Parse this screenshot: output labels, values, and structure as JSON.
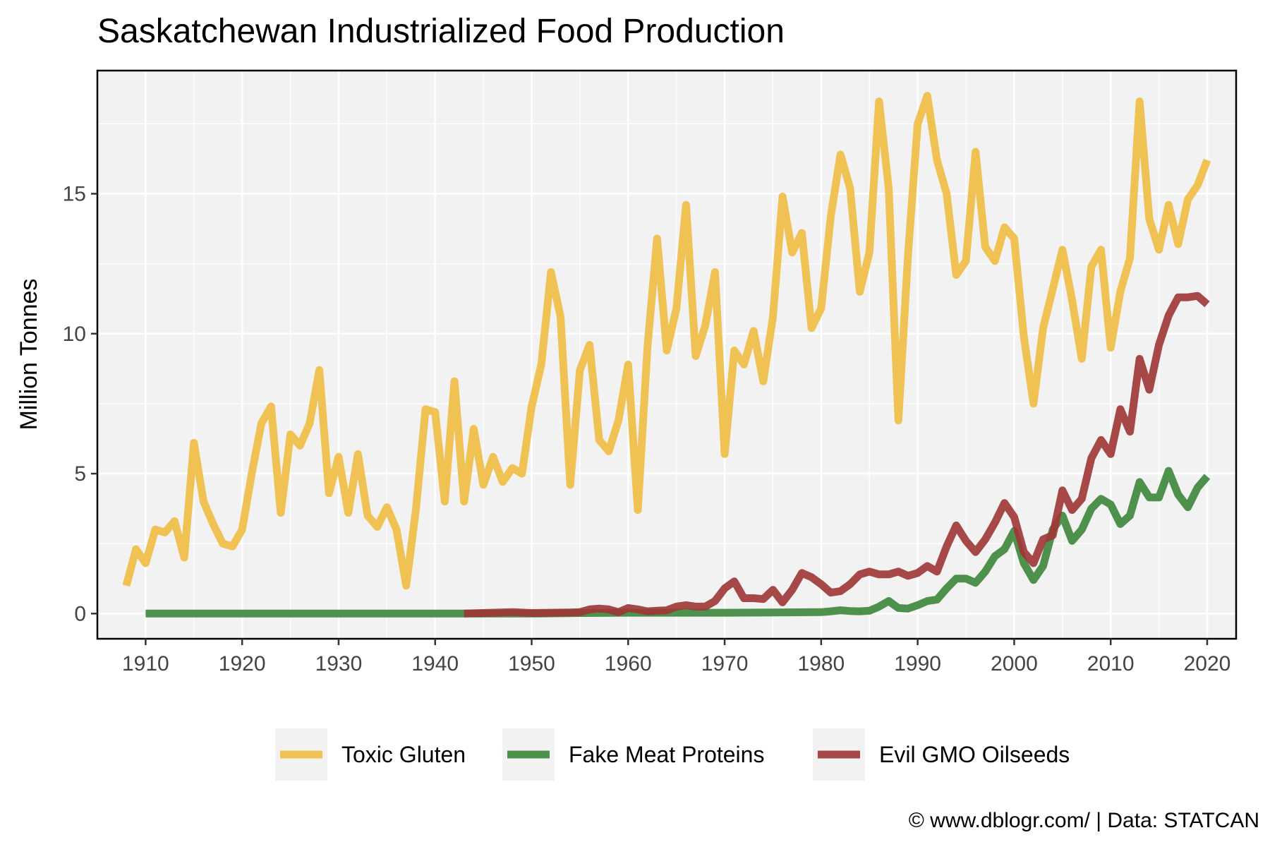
{
  "chart_data": {
    "type": "line",
    "title": "Saskatchewan Industrialized Food Production",
    "xlabel": "",
    "ylabel": "Million Tonnes",
    "xlim": [
      1905,
      2023
    ],
    "ylim": [
      -0.9,
      19.4
    ],
    "xticks": [
      1910,
      1920,
      1930,
      1940,
      1950,
      1960,
      1970,
      1980,
      1990,
      2000,
      2010,
      2020
    ],
    "yticks": [
      0,
      5,
      10,
      15
    ],
    "grid": true,
    "legend_position": "bottom",
    "caption": "© www.dblogr.com/  |  Data: STATCAN",
    "series": [
      {
        "name": "Toxic Gluten",
        "color": "#F0BC42",
        "points": [
          [
            1908,
            1.0
          ],
          [
            1909,
            2.3
          ],
          [
            1910,
            1.8
          ],
          [
            1911,
            3.0
          ],
          [
            1912,
            2.9
          ],
          [
            1913,
            3.3
          ],
          [
            1914,
            2.0
          ],
          [
            1915,
            6.1
          ],
          [
            1916,
            4.0
          ],
          [
            1917,
            3.2
          ],
          [
            1918,
            2.5
          ],
          [
            1919,
            2.4
          ],
          [
            1920,
            3.0
          ],
          [
            1921,
            5.0
          ],
          [
            1922,
            6.8
          ],
          [
            1923,
            7.4
          ],
          [
            1924,
            3.6
          ],
          [
            1925,
            6.4
          ],
          [
            1926,
            6.0
          ],
          [
            1927,
            6.8
          ],
          [
            1928,
            8.7
          ],
          [
            1929,
            4.3
          ],
          [
            1930,
            5.6
          ],
          [
            1931,
            3.6
          ],
          [
            1932,
            5.7
          ],
          [
            1933,
            3.5
          ],
          [
            1934,
            3.1
          ],
          [
            1935,
            3.8
          ],
          [
            1936,
            3.0
          ],
          [
            1937,
            1.0
          ],
          [
            1938,
            3.7
          ],
          [
            1939,
            7.3
          ],
          [
            1940,
            7.2
          ],
          [
            1941,
            4.0
          ],
          [
            1942,
            8.3
          ],
          [
            1943,
            4.0
          ],
          [
            1944,
            6.6
          ],
          [
            1945,
            4.6
          ],
          [
            1946,
            5.6
          ],
          [
            1947,
            4.7
          ],
          [
            1948,
            5.2
          ],
          [
            1949,
            5.0
          ],
          [
            1950,
            7.4
          ],
          [
            1951,
            8.9
          ],
          [
            1952,
            12.2
          ],
          [
            1953,
            10.6
          ],
          [
            1954,
            4.6
          ],
          [
            1955,
            8.7
          ],
          [
            1956,
            9.6
          ],
          [
            1957,
            6.2
          ],
          [
            1958,
            5.8
          ],
          [
            1959,
            6.9
          ],
          [
            1960,
            8.9
          ],
          [
            1961,
            3.7
          ],
          [
            1962,
            9.5
          ],
          [
            1963,
            13.4
          ],
          [
            1964,
            9.4
          ],
          [
            1965,
            10.9
          ],
          [
            1966,
            14.6
          ],
          [
            1967,
            9.2
          ],
          [
            1968,
            10.3
          ],
          [
            1969,
            12.2
          ],
          [
            1970,
            5.7
          ],
          [
            1971,
            9.4
          ],
          [
            1972,
            8.9
          ],
          [
            1973,
            10.1
          ],
          [
            1974,
            8.3
          ],
          [
            1975,
            10.6
          ],
          [
            1976,
            14.9
          ],
          [
            1977,
            12.9
          ],
          [
            1978,
            13.6
          ],
          [
            1979,
            10.2
          ],
          [
            1980,
            10.9
          ],
          [
            1981,
            14.2
          ],
          [
            1982,
            16.4
          ],
          [
            1983,
            15.2
          ],
          [
            1984,
            11.5
          ],
          [
            1985,
            12.9
          ],
          [
            1986,
            18.3
          ],
          [
            1987,
            15.2
          ],
          [
            1988,
            6.9
          ],
          [
            1989,
            12.8
          ],
          [
            1990,
            17.5
          ],
          [
            1991,
            18.5
          ],
          [
            1992,
            16.2
          ],
          [
            1993,
            15.0
          ],
          [
            1994,
            12.1
          ],
          [
            1995,
            12.6
          ],
          [
            1996,
            16.5
          ],
          [
            1997,
            13.1
          ],
          [
            1998,
            12.6
          ],
          [
            1999,
            13.8
          ],
          [
            2000,
            13.4
          ],
          [
            2001,
            9.9
          ],
          [
            2002,
            7.5
          ],
          [
            2003,
            10.2
          ],
          [
            2004,
            11.6
          ],
          [
            2005,
            13.0
          ],
          [
            2006,
            11.2
          ],
          [
            2007,
            9.1
          ],
          [
            2008,
            12.4
          ],
          [
            2009,
            13.0
          ],
          [
            2010,
            9.5
          ],
          [
            2011,
            11.5
          ],
          [
            2012,
            12.7
          ],
          [
            2013,
            18.3
          ],
          [
            2014,
            14.1
          ],
          [
            2015,
            13.0
          ],
          [
            2016,
            14.6
          ],
          [
            2017,
            13.2
          ],
          [
            2018,
            14.8
          ],
          [
            2019,
            15.3
          ],
          [
            2020,
            16.2
          ]
        ]
      },
      {
        "name": "Fake Meat Proteins",
        "color": "#3B863A",
        "points": [
          [
            1910,
            0.0
          ],
          [
            1920,
            0.0
          ],
          [
            1930,
            0.0
          ],
          [
            1940,
            0.0
          ],
          [
            1950,
            0.0
          ],
          [
            1955,
            0.02
          ],
          [
            1960,
            0.03
          ],
          [
            1965,
            0.03
          ],
          [
            1970,
            0.03
          ],
          [
            1975,
            0.04
          ],
          [
            1980,
            0.05
          ],
          [
            1981,
            0.08
          ],
          [
            1982,
            0.12
          ],
          [
            1983,
            0.09
          ],
          [
            1984,
            0.08
          ],
          [
            1985,
            0.1
          ],
          [
            1986,
            0.25
          ],
          [
            1987,
            0.45
          ],
          [
            1988,
            0.2
          ],
          [
            1989,
            0.18
          ],
          [
            1990,
            0.3
          ],
          [
            1991,
            0.45
          ],
          [
            1992,
            0.5
          ],
          [
            1993,
            0.9
          ],
          [
            1994,
            1.25
          ],
          [
            1995,
            1.25
          ],
          [
            1996,
            1.1
          ],
          [
            1997,
            1.5
          ],
          [
            1998,
            2.05
          ],
          [
            1999,
            2.3
          ],
          [
            2000,
            2.95
          ],
          [
            2001,
            1.8
          ],
          [
            2002,
            1.2
          ],
          [
            2003,
            1.7
          ],
          [
            2004,
            3.0
          ],
          [
            2005,
            3.5
          ],
          [
            2006,
            2.6
          ],
          [
            2007,
            3.0
          ],
          [
            2008,
            3.75
          ],
          [
            2009,
            4.1
          ],
          [
            2010,
            3.9
          ],
          [
            2011,
            3.2
          ],
          [
            2012,
            3.5
          ],
          [
            2013,
            4.7
          ],
          [
            2014,
            4.15
          ],
          [
            2015,
            4.15
          ],
          [
            2016,
            5.1
          ],
          [
            2017,
            4.25
          ],
          [
            2018,
            3.8
          ],
          [
            2019,
            4.5
          ],
          [
            2020,
            4.9
          ]
        ]
      },
      {
        "name": "Evil GMO Oilseeds",
        "color": "#9E3535",
        "points": [
          [
            1943,
            0.0
          ],
          [
            1945,
            0.02
          ],
          [
            1948,
            0.05
          ],
          [
            1950,
            0.02
          ],
          [
            1954,
            0.04
          ],
          [
            1955,
            0.05
          ],
          [
            1956,
            0.15
          ],
          [
            1957,
            0.18
          ],
          [
            1958,
            0.15
          ],
          [
            1959,
            0.05
          ],
          [
            1960,
            0.2
          ],
          [
            1961,
            0.15
          ],
          [
            1962,
            0.08
          ],
          [
            1963,
            0.1
          ],
          [
            1964,
            0.12
          ],
          [
            1965,
            0.25
          ],
          [
            1966,
            0.3
          ],
          [
            1967,
            0.25
          ],
          [
            1968,
            0.25
          ],
          [
            1969,
            0.45
          ],
          [
            1970,
            0.9
          ],
          [
            1971,
            1.15
          ],
          [
            1972,
            0.55
          ],
          [
            1973,
            0.55
          ],
          [
            1974,
            0.52
          ],
          [
            1975,
            0.85
          ],
          [
            1976,
            0.4
          ],
          [
            1977,
            0.85
          ],
          [
            1978,
            1.45
          ],
          [
            1979,
            1.3
          ],
          [
            1980,
            1.05
          ],
          [
            1981,
            0.75
          ],
          [
            1982,
            0.8
          ],
          [
            1983,
            1.05
          ],
          [
            1984,
            1.4
          ],
          [
            1985,
            1.5
          ],
          [
            1986,
            1.4
          ],
          [
            1987,
            1.4
          ],
          [
            1988,
            1.5
          ],
          [
            1989,
            1.35
          ],
          [
            1990,
            1.45
          ],
          [
            1991,
            1.7
          ],
          [
            1992,
            1.5
          ],
          [
            1993,
            2.4
          ],
          [
            1994,
            3.15
          ],
          [
            1995,
            2.6
          ],
          [
            1996,
            2.2
          ],
          [
            1997,
            2.65
          ],
          [
            1998,
            3.25
          ],
          [
            1999,
            3.95
          ],
          [
            2000,
            3.45
          ],
          [
            2001,
            2.2
          ],
          [
            2002,
            1.8
          ],
          [
            2003,
            2.65
          ],
          [
            2004,
            2.8
          ],
          [
            2005,
            4.4
          ],
          [
            2006,
            3.7
          ],
          [
            2007,
            4.1
          ],
          [
            2008,
            5.55
          ],
          [
            2009,
            6.2
          ],
          [
            2010,
            5.7
          ],
          [
            2011,
            7.3
          ],
          [
            2012,
            6.5
          ],
          [
            2013,
            9.1
          ],
          [
            2014,
            8.0
          ],
          [
            2015,
            9.6
          ],
          [
            2016,
            10.65
          ],
          [
            2017,
            11.3
          ],
          [
            2018,
            11.3
          ],
          [
            2019,
            11.35
          ],
          [
            2020,
            11.05
          ]
        ]
      }
    ]
  }
}
